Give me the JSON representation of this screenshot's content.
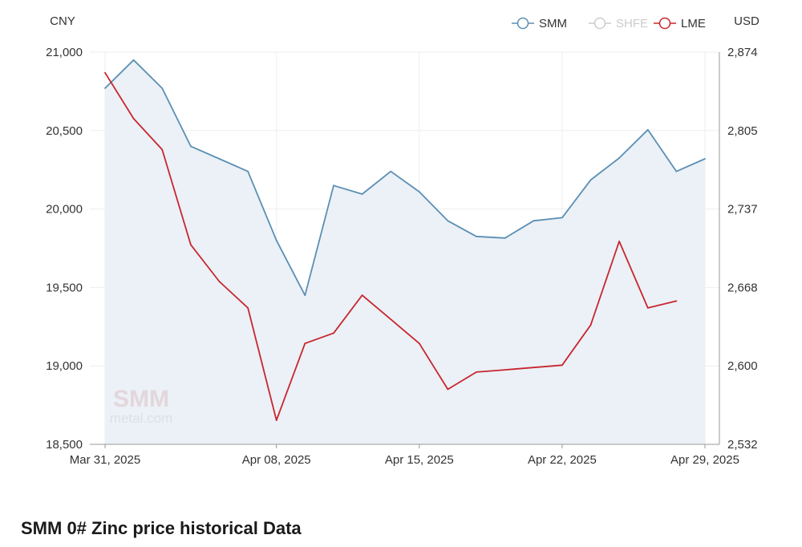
{
  "page": {
    "section_title": "SMM 0# Zinc price historical Data",
    "watermark_line1": "SMM",
    "watermark_line2": "metal.com"
  },
  "chart_data": {
    "type": "line",
    "left_axis_label": "CNY",
    "right_axis_label": "USD",
    "left_ylim": [
      18500,
      21000
    ],
    "left_ticks": [
      "21,000",
      "20,500",
      "20,000",
      "19,500",
      "19,000",
      "18,500"
    ],
    "right_ylim": [
      2532,
      2874
    ],
    "right_ticks": [
      "2,874",
      "2,805",
      "2,737",
      "2,668",
      "2,600",
      "2,532"
    ],
    "x_tick_labels": [
      "Mar 31, 2025",
      "Apr 08, 2025",
      "Apr 15, 2025",
      "Apr 22, 2025",
      "Apr 29, 2025"
    ],
    "x_tick_index": [
      0,
      6,
      11,
      16,
      21
    ],
    "x_dates": [
      "Mar 31",
      "Apr 01",
      "Apr 02",
      "Apr 03",
      "Apr 04",
      "Apr 07",
      "Apr 08",
      "Apr 09",
      "Apr 10",
      "Apr 11",
      "Apr 14",
      "Apr 15",
      "Apr 16",
      "Apr 17",
      "Apr 18",
      "Apr 21",
      "Apr 22",
      "Apr 23",
      "Apr 24",
      "Apr 25",
      "Apr 28",
      "Apr 29"
    ],
    "grid": true,
    "legend_position": "top-right",
    "legend": [
      {
        "name": "SMM",
        "color": "#5b8fb4",
        "active": true
      },
      {
        "name": "SHFE",
        "color": "#c8c8c8",
        "active": false
      },
      {
        "name": "LME",
        "color": "#c8262f",
        "active": true
      }
    ],
    "series": [
      {
        "name": "SMM",
        "axis": "left",
        "color": "#5b8fb4",
        "area_fill": "#ebf1f6",
        "values": [
          20770,
          20950,
          20770,
          20400,
          20320,
          20240,
          19800,
          19450,
          20150,
          20095,
          20240,
          20110,
          19925,
          19825,
          19815,
          19925,
          19945,
          20185,
          20325,
          20505,
          20240,
          20320
        ]
      },
      {
        "name": "LME",
        "axis": "right",
        "color": "#c8262f",
        "values": [
          2856,
          2816,
          2789,
          2706,
          2674,
          2651,
          2553,
          2620,
          2629,
          2662,
          2641,
          2620,
          2580,
          2595,
          2597,
          2599,
          2601,
          2636,
          2709,
          2651,
          2657,
          null
        ]
      }
    ]
  }
}
